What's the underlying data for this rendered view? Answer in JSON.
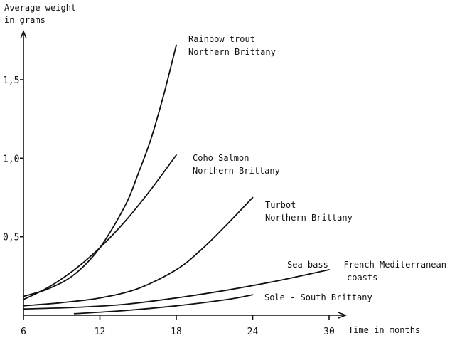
{
  "chart_data": {
    "type": "line",
    "title": "",
    "ylabel": [
      "Average weight",
      "in grams"
    ],
    "xlabel": "Time in months",
    "xlim": [
      6,
      30
    ],
    "ylim": [
      0,
      1.7
    ],
    "x_ticks": [
      6,
      12,
      18,
      24,
      30
    ],
    "x_tick_labels": [
      "6",
      "12",
      "18",
      "24",
      "30"
    ],
    "y_ticks": [
      0.5,
      1.0,
      1.5
    ],
    "y_tick_labels": [
      "0,5",
      "1,0",
      "1,5"
    ],
    "grid": false,
    "series": [
      {
        "id": "rainbow",
        "name": [
          "Rainbow trout",
          "Northern Brittany"
        ],
        "x": [
          6,
          8,
          10,
          12,
          14,
          15,
          16,
          17,
          18
        ],
        "y": [
          0.12,
          0.17,
          0.26,
          0.43,
          0.7,
          0.9,
          1.12,
          1.4,
          1.72
        ]
      },
      {
        "id": "coho",
        "name": [
          "Coho Salmon",
          "Northern Brittany"
        ],
        "x": [
          6,
          8,
          10,
          12,
          14,
          16,
          18
        ],
        "y": [
          0.1,
          0.18,
          0.29,
          0.43,
          0.6,
          0.8,
          1.02
        ]
      },
      {
        "id": "turbot",
        "name": [
          "Turbot",
          "Northern Brittany"
        ],
        "x": [
          6,
          9,
          12,
          15,
          18,
          20,
          22,
          24
        ],
        "y": [
          0.06,
          0.08,
          0.11,
          0.17,
          0.29,
          0.42,
          0.58,
          0.75
        ]
      },
      {
        "id": "seabass",
        "name": [
          "Sea-bass - French Mediterranean",
          "coasts"
        ],
        "x": [
          6,
          10,
          14,
          18,
          22,
          26,
          30
        ],
        "y": [
          0.04,
          0.05,
          0.07,
          0.11,
          0.16,
          0.22,
          0.29
        ]
      },
      {
        "id": "sole",
        "name": [
          "Sole - South Brittany"
        ],
        "x": [
          10,
          14,
          18,
          22,
          24
        ],
        "y": [
          0.01,
          0.03,
          0.06,
          0.1,
          0.13
        ]
      }
    ]
  }
}
